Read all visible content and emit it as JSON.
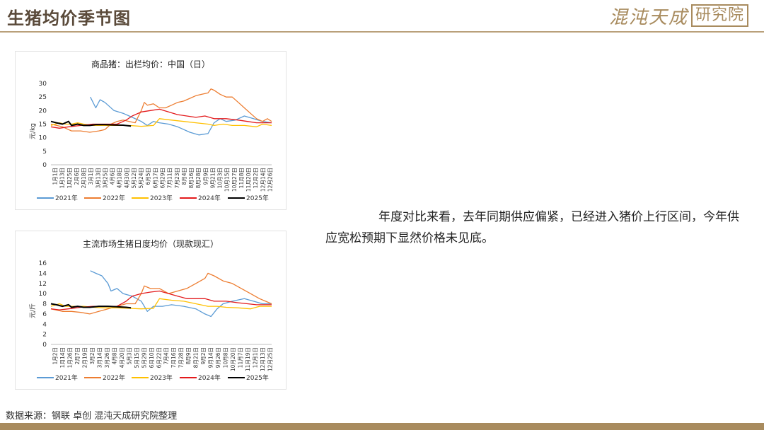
{
  "header": {
    "title": "生猪均价季节图",
    "brand_cn": "混沌天成",
    "brand_box": "研究院"
  },
  "body_text": "年度对比来看，去年同期供应偏紧，已经进入猪价上行区间，今年供应宽松预期下显然价格未见底。",
  "source": "数据来源：钢联 卓创 混沌天成研究院整理",
  "colors": {
    "2021": "#5b9bd5",
    "2022": "#ed7d31",
    "2023": "#ffc000",
    "2024": "#e31a1c",
    "2025": "#000000",
    "accent": "#a88b5e"
  },
  "chart_data": [
    {
      "type": "line",
      "title": "商品猪：出栏均价：中国（日）",
      "ylabel": "元/kg",
      "ylim": [
        0,
        30
      ],
      "yticks": [
        0,
        5,
        10,
        15,
        20,
        25,
        30
      ],
      "grid": false,
      "legend": "bottom",
      "x_ticks": [
        "1月1日",
        "1月13日",
        "1月25日",
        "2月6日",
        "2月18日",
        "3月1日",
        "3月13日",
        "3月25日",
        "4月6日",
        "4月18日",
        "4月30日",
        "5月12日",
        "5月24日",
        "6月5日",
        "6月17日",
        "6月29日",
        "7月11日",
        "7月23日",
        "8月4日",
        "8月16日",
        "8月28日",
        "9月9日",
        "9月21日",
        "10月3日",
        "10月15日",
        "10月27日",
        "11月8日",
        "11月20日",
        "12月2日",
        "12月14日",
        "12月26日"
      ],
      "series": [
        {
          "name": "2021年",
          "points": [
            [
              66,
              25
            ],
            [
              75,
              21
            ],
            [
              82,
              24
            ],
            [
              90,
              23
            ],
            [
              105,
              20
            ],
            [
              120,
              19
            ],
            [
              135,
              17.5
            ],
            [
              150,
              16
            ],
            [
              160,
              14.5
            ],
            [
              170,
              16
            ],
            [
              180,
              15.5
            ],
            [
              195,
              15
            ],
            [
              210,
              14
            ],
            [
              230,
              12
            ],
            [
              245,
              11
            ],
            [
              260,
              11.5
            ],
            [
              270,
              15.5
            ],
            [
              280,
              17
            ],
            [
              290,
              16
            ],
            [
              305,
              16.5
            ],
            [
              320,
              18
            ],
            [
              335,
              17
            ],
            [
              350,
              16
            ],
            [
              365,
              15.5
            ]
          ]
        },
        {
          "name": "2022年",
          "points": [
            [
              1,
              15
            ],
            [
              20,
              14
            ],
            [
              35,
              12.5
            ],
            [
              50,
              12.5
            ],
            [
              65,
              12
            ],
            [
              80,
              12.5
            ],
            [
              90,
              13
            ],
            [
              100,
              15
            ],
            [
              110,
              16
            ],
            [
              120,
              16.5
            ],
            [
              130,
              16
            ],
            [
              140,
              15.5
            ],
            [
              150,
              20
            ],
            [
              155,
              23
            ],
            [
              160,
              22
            ],
            [
              170,
              22.5
            ],
            [
              180,
              21
            ],
            [
              190,
              21
            ],
            [
              200,
              22
            ],
            [
              210,
              23
            ],
            [
              220,
              23.5
            ],
            [
              230,
              24.5
            ],
            [
              240,
              25.5
            ],
            [
              250,
              26
            ],
            [
              260,
              26.5
            ],
            [
              265,
              28
            ],
            [
              270,
              27.5
            ],
            [
              280,
              26
            ],
            [
              290,
              25
            ],
            [
              300,
              25
            ],
            [
              310,
              23
            ],
            [
              320,
              21
            ],
            [
              330,
              19
            ],
            [
              340,
              17
            ],
            [
              350,
              16
            ],
            [
              358,
              17
            ],
            [
              365,
              16
            ]
          ]
        },
        {
          "name": "2023年",
          "points": [
            [
              1,
              14.5
            ],
            [
              15,
              15.5
            ],
            [
              25,
              15
            ],
            [
              35,
              15
            ],
            [
              45,
              15.5
            ],
            [
              55,
              15
            ],
            [
              70,
              14.5
            ],
            [
              90,
              14.5
            ],
            [
              110,
              14.5
            ],
            [
              130,
              14.5
            ],
            [
              150,
              14.2
            ],
            [
              170,
              14.5
            ],
            [
              180,
              17
            ],
            [
              200,
              16.5
            ],
            [
              220,
              16
            ],
            [
              240,
              15.5
            ],
            [
              260,
              15
            ],
            [
              270,
              14.5
            ],
            [
              285,
              15
            ],
            [
              300,
              14.5
            ],
            [
              320,
              14.5
            ],
            [
              340,
              14
            ],
            [
              350,
              15
            ],
            [
              365,
              14.5
            ]
          ]
        },
        {
          "name": "2024年",
          "points": [
            [
              1,
              14
            ],
            [
              15,
              13.5
            ],
            [
              30,
              14
            ],
            [
              50,
              14.5
            ],
            [
              70,
              15
            ],
            [
              90,
              15
            ],
            [
              110,
              15
            ],
            [
              125,
              16.5
            ],
            [
              135,
              18
            ],
            [
              150,
              19.5
            ],
            [
              165,
              20
            ],
            [
              180,
              20.5
            ],
            [
              195,
              19.5
            ],
            [
              210,
              18.5
            ],
            [
              225,
              18
            ],
            [
              240,
              17.5
            ],
            [
              255,
              18
            ],
            [
              270,
              17
            ],
            [
              290,
              17
            ],
            [
              310,
              16.5
            ],
            [
              325,
              16
            ],
            [
              340,
              15.5
            ],
            [
              355,
              15.5
            ],
            [
              365,
              15.5
            ]
          ]
        },
        {
          "name": "2025年",
          "points": [
            [
              1,
              16
            ],
            [
              10,
              15.5
            ],
            [
              20,
              15
            ],
            [
              30,
              16
            ],
            [
              35,
              14.5
            ],
            [
              45,
              15
            ],
            [
              55,
              14.5
            ],
            [
              65,
              14.5
            ],
            [
              75,
              14.8
            ],
            [
              90,
              14.8
            ],
            [
              105,
              14.7
            ],
            [
              120,
              14.6
            ],
            [
              133,
              14.3
            ]
          ]
        }
      ]
    },
    {
      "type": "line",
      "title": "主流市场生猪日度均价（现款现汇）",
      "ylabel": "元/斤",
      "ylim": [
        0,
        16
      ],
      "yticks": [
        0,
        2,
        4,
        6,
        8,
        10,
        12,
        14,
        16
      ],
      "grid": false,
      "legend": "bottom",
      "x_ticks": [
        "1月2日",
        "1月14日",
        "1月26日",
        "2月7日",
        "2月19日",
        "3月2日",
        "3月14日",
        "3月26日",
        "4月8日",
        "4月20日",
        "5月3日",
        "5月15日",
        "5月29日",
        "6月10日",
        "6月22日",
        "7月4日",
        "7月16日",
        "7月28日",
        "8月9日",
        "8月21日",
        "9月2日",
        "9月14日",
        "9月26日",
        "10月8日",
        "10月20日",
        "11月7日",
        "11月19日",
        "12月1日",
        "12月13日",
        "12月25日"
      ],
      "series": [
        {
          "name": "2021年",
          "points": [
            [
              66,
              14.5
            ],
            [
              75,
              14
            ],
            [
              85,
              13.5
            ],
            [
              95,
              12
            ],
            [
              100,
              10.5
            ],
            [
              110,
              11
            ],
            [
              120,
              10
            ],
            [
              135,
              9.5
            ],
            [
              150,
              8.5
            ],
            [
              160,
              6.5
            ],
            [
              170,
              7.5
            ],
            [
              185,
              7.5
            ],
            [
              200,
              7.8
            ],
            [
              220,
              7.5
            ],
            [
              240,
              7
            ],
            [
              255,
              6
            ],
            [
              265,
              5.5
            ],
            [
              275,
              7
            ],
            [
              285,
              8
            ],
            [
              300,
              8.5
            ],
            [
              320,
              9
            ],
            [
              335,
              8.5
            ],
            [
              350,
              8
            ],
            [
              365,
              8
            ]
          ]
        },
        {
          "name": "2022年",
          "points": [
            [
              1,
              7
            ],
            [
              20,
              6.5
            ],
            [
              35,
              6.5
            ],
            [
              50,
              6.3
            ],
            [
              65,
              6
            ],
            [
              80,
              6.5
            ],
            [
              95,
              7
            ],
            [
              110,
              7.5
            ],
            [
              125,
              8
            ],
            [
              140,
              8
            ],
            [
              150,
              10
            ],
            [
              155,
              11.5
            ],
            [
              165,
              11
            ],
            [
              180,
              11
            ],
            [
              195,
              10
            ],
            [
              210,
              10.5
            ],
            [
              225,
              11
            ],
            [
              240,
              12
            ],
            [
              255,
              13
            ],
            [
              260,
              14
            ],
            [
              270,
              13.5
            ],
            [
              285,
              12.5
            ],
            [
              300,
              12
            ],
            [
              315,
              11
            ],
            [
              330,
              10
            ],
            [
              345,
              9
            ],
            [
              355,
              8.5
            ],
            [
              365,
              8
            ]
          ]
        },
        {
          "name": "2023年",
          "points": [
            [
              1,
              7.5
            ],
            [
              15,
              8
            ],
            [
              25,
              7.5
            ],
            [
              40,
              7.5
            ],
            [
              55,
              7.5
            ],
            [
              70,
              7.3
            ],
            [
              90,
              7.2
            ],
            [
              110,
              7.2
            ],
            [
              130,
              7.1
            ],
            [
              150,
              7
            ],
            [
              170,
              7.1
            ],
            [
              180,
              9
            ],
            [
              200,
              8.7
            ],
            [
              220,
              8.5
            ],
            [
              240,
              8
            ],
            [
              260,
              7.5
            ],
            [
              275,
              7.5
            ],
            [
              290,
              7.3
            ],
            [
              310,
              7.2
            ],
            [
              330,
              7
            ],
            [
              345,
              7.5
            ],
            [
              365,
              7.5
            ]
          ]
        },
        {
          "name": "2024年",
          "points": [
            [
              1,
              7
            ],
            [
              15,
              6.8
            ],
            [
              30,
              7
            ],
            [
              50,
              7.3
            ],
            [
              70,
              7.5
            ],
            [
              90,
              7.5
            ],
            [
              110,
              7.5
            ],
            [
              125,
              8.5
            ],
            [
              135,
              9.5
            ],
            [
              150,
              10
            ],
            [
              165,
              10.3
            ],
            [
              180,
              10.5
            ],
            [
              195,
              10
            ],
            [
              210,
              9.5
            ],
            [
              225,
              9
            ],
            [
              240,
              9
            ],
            [
              255,
              9
            ],
            [
              270,
              8.5
            ],
            [
              290,
              8.5
            ],
            [
              310,
              8.2
            ],
            [
              325,
              8
            ],
            [
              340,
              7.8
            ],
            [
              355,
              7.8
            ],
            [
              365,
              7.8
            ]
          ]
        },
        {
          "name": "2025年",
          "points": [
            [
              1,
              8
            ],
            [
              10,
              7.8
            ],
            [
              20,
              7.5
            ],
            [
              30,
              7.8
            ],
            [
              35,
              7.3
            ],
            [
              45,
              7.5
            ],
            [
              55,
              7.3
            ],
            [
              65,
              7.3
            ],
            [
              80,
              7.5
            ],
            [
              95,
              7.5
            ],
            [
              110,
              7.4
            ],
            [
              125,
              7.3
            ],
            [
              133,
              7.2
            ]
          ]
        }
      ]
    }
  ]
}
